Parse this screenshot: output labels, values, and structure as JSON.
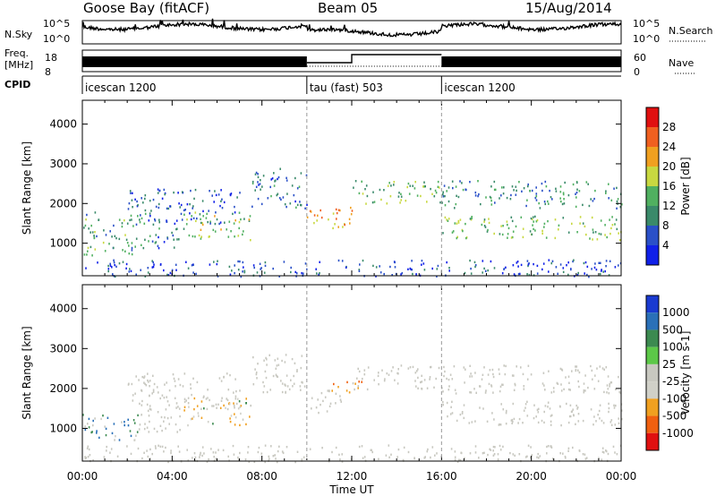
{
  "header": {
    "station": "Goose Bay (fitACF)",
    "beam": "Beam 05",
    "date": "15/Aug/2014"
  },
  "panels": {
    "nsky": {
      "label": "N.Sky",
      "yticks": [
        "10^5",
        "10^0"
      ],
      "yticks_right": [
        "10^5",
        "10^0"
      ],
      "legend_right": "N.Search"
    },
    "freq": {
      "label_top": "Freq.",
      "label_bottom": "[MHz]",
      "yticks": [
        "18",
        "8"
      ],
      "yticks_right": [
        "60",
        "0"
      ],
      "legend_right": "Nave"
    },
    "cpid": {
      "label": "CPID",
      "segments": [
        {
          "name": "icescan 1200",
          "start_hour": 0,
          "end_hour": 10
        },
        {
          "name": "tau (fast) 503",
          "start_hour": 10,
          "end_hour": 16
        },
        {
          "name": "icescan 1200",
          "start_hour": 16,
          "end_hour": 24
        }
      ]
    }
  },
  "chart_data": [
    {
      "type": "heatmap",
      "title": "",
      "quantity": "Power",
      "xlabel": "",
      "ylabel": "Slant Range [km]",
      "ylim": [
        180,
        4600
      ],
      "yticks": [
        1000,
        2000,
        3000,
        4000
      ],
      "colorbar": {
        "label": "Power [dB]",
        "ticks": [
          4,
          8,
          12,
          16,
          20,
          24,
          28
        ],
        "colors": [
          "#1020e8",
          "#2a50c8",
          "#3a8a6a",
          "#50b060",
          "#c8d840",
          "#f0a020",
          "#f06020",
          "#e01010"
        ]
      },
      "echo_regions": [
        {
          "t0": 0.0,
          "t1": 2.8,
          "r0": 700,
          "r1": 1800,
          "value": 12
        },
        {
          "t0": 2.8,
          "t1": 4.5,
          "r0": 900,
          "r1": 1500,
          "value": 8
        },
        {
          "t0": 4.5,
          "t1": 7.5,
          "r0": 1100,
          "r1": 1800,
          "value": 16
        },
        {
          "t0": 2.0,
          "t1": 7.0,
          "r0": 1500,
          "r1": 2400,
          "value": 6
        },
        {
          "t0": 7.5,
          "t1": 10.0,
          "r0": 1900,
          "r1": 2900,
          "value": 8
        },
        {
          "t0": 10.0,
          "t1": 12.0,
          "r0": 1400,
          "r1": 2000,
          "value": 22
        },
        {
          "t0": 12.0,
          "t1": 16.0,
          "r0": 2000,
          "r1": 2600,
          "value": 14
        },
        {
          "t0": 16.0,
          "t1": 24.0,
          "r0": 1100,
          "r1": 1700,
          "value": 14
        },
        {
          "t0": 16.0,
          "t1": 24.0,
          "r0": 1900,
          "r1": 2600,
          "value": 10
        },
        {
          "t0": 0.0,
          "t1": 24.0,
          "r0": 180,
          "r1": 600,
          "value": 6
        }
      ]
    },
    {
      "type": "heatmap",
      "title": "",
      "quantity": "Velocity",
      "xlabel": "Time UT",
      "ylabel": "Slant Range [km]",
      "xlim": [
        0,
        24
      ],
      "xticks": [
        "00:00",
        "04:00",
        "08:00",
        "12:00",
        "16:00",
        "20:00",
        "00:00"
      ],
      "ylim": [
        180,
        4600
      ],
      "yticks": [
        1000,
        2000,
        3000,
        4000
      ],
      "colorbar": {
        "label": "Velocity [m s-1]",
        "ticks": [
          1000,
          500,
          100,
          25,
          -25,
          -100,
          -500,
          -1000
        ],
        "colors": [
          "#1a3ad0",
          "#2a70b8",
          "#3c8a50",
          "#5cc848",
          "#c8c8c0",
          "#d0d0c8",
          "#f0a020",
          "#f06010",
          "#e01010"
        ]
      },
      "echo_regions": [
        {
          "t0": 0.0,
          "t1": 2.5,
          "r0": 700,
          "r1": 1400,
          "value": 100
        },
        {
          "t0": 2.5,
          "t1": 4.5,
          "r0": 900,
          "r1": 1500,
          "value": 0
        },
        {
          "t0": 4.5,
          "t1": 7.5,
          "r0": 1100,
          "r1": 1800,
          "value": -100
        },
        {
          "t0": 2.0,
          "t1": 7.0,
          "r0": 1500,
          "r1": 2400,
          "value": 0
        },
        {
          "t0": 7.5,
          "t1": 10.0,
          "r0": 1900,
          "r1": 2900,
          "value": 0
        },
        {
          "t0": 10.0,
          "t1": 11.5,
          "r0": 1400,
          "r1": 2000,
          "value": 0
        },
        {
          "t0": 11.0,
          "t1": 12.5,
          "r0": 1900,
          "r1": 2200,
          "value": -500
        },
        {
          "t0": 12.0,
          "t1": 16.0,
          "r0": 2000,
          "r1": 2600,
          "value": 0
        },
        {
          "t0": 16.0,
          "t1": 24.0,
          "r0": 1100,
          "r1": 1700,
          "value": 0
        },
        {
          "t0": 16.0,
          "t1": 24.0,
          "r0": 1900,
          "r1": 2600,
          "value": 0
        },
        {
          "t0": 0.0,
          "t1": 24.0,
          "r0": 180,
          "r1": 600,
          "value": 0
        }
      ]
    }
  ],
  "x_axis": {
    "label": "Time UT",
    "ticks": [
      "00:00",
      "04:00",
      "08:00",
      "12:00",
      "16:00",
      "20:00",
      "00:00"
    ]
  }
}
